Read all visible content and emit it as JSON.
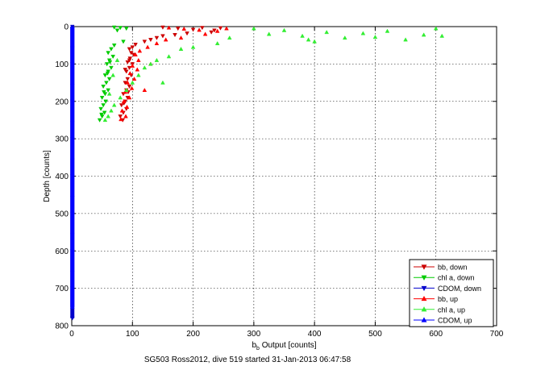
{
  "figure": {
    "footer": "SG503 Ross2012, dive 519 started 31-Jan-2013 06:47:58"
  },
  "chart_data": {
    "type": "scatter",
    "xlabel_main": "b",
    "xlabel_sub": "b",
    "xlabel_rest": " Output [counts]",
    "ylabel": "Depth [counts]",
    "xlim": [
      0,
      700
    ],
    "ylim": [
      0,
      800
    ],
    "y_reversed": true,
    "grid": true,
    "x_ticks": [
      "0",
      "100",
      "200",
      "300",
      "400",
      "500",
      "600",
      "700"
    ],
    "y_ticks": [
      "0",
      "100",
      "200",
      "300",
      "400",
      "500",
      "600",
      "700",
      "800"
    ],
    "legend_position": "bottom-right",
    "series": [
      {
        "name": "bb, down",
        "color": "#cc0000",
        "marker": "triangle-down",
        "points": [
          [
            150,
            2
          ],
          [
            175,
            5
          ],
          [
            200,
            8
          ],
          [
            215,
            3
          ],
          [
            235,
            10
          ],
          [
            245,
            4
          ],
          [
            230,
            15
          ],
          [
            190,
            18
          ],
          [
            170,
            22
          ],
          [
            150,
            25
          ],
          [
            140,
            30
          ],
          [
            130,
            35
          ],
          [
            120,
            40
          ],
          [
            105,
            48
          ],
          [
            100,
            55
          ],
          [
            95,
            60
          ],
          [
            98,
            70
          ],
          [
            102,
            75
          ],
          [
            96,
            85
          ],
          [
            92,
            95
          ],
          [
            100,
            100
          ],
          [
            95,
            110
          ],
          [
            90,
            120
          ],
          [
            98,
            130
          ],
          [
            92,
            140
          ],
          [
            88,
            150
          ],
          [
            95,
            160
          ],
          [
            90,
            170
          ],
          [
            85,
            180
          ],
          [
            92,
            190
          ],
          [
            88,
            200
          ],
          [
            82,
            210
          ],
          [
            90,
            220
          ],
          [
            85,
            230
          ],
          [
            80,
            240
          ],
          [
            84,
            250
          ],
          [
            95,
            90
          ],
          [
            88,
            115
          ],
          [
            93,
            175
          ],
          [
            86,
            205
          ]
        ]
      },
      {
        "name": "chl a, down",
        "color": "#00cc00",
        "marker": "triangle-down",
        "points": [
          [
            70,
            2
          ],
          [
            80,
            3
          ],
          [
            90,
            5
          ],
          [
            75,
            10
          ],
          [
            85,
            40
          ],
          [
            70,
            50
          ],
          [
            65,
            60
          ],
          [
            60,
            70
          ],
          [
            68,
            80
          ],
          [
            62,
            90
          ],
          [
            58,
            100
          ],
          [
            65,
            110
          ],
          [
            60,
            120
          ],
          [
            55,
            130
          ],
          [
            62,
            140
          ],
          [
            57,
            150
          ],
          [
            52,
            160
          ],
          [
            60,
            170
          ],
          [
            55,
            180
          ],
          [
            50,
            190
          ],
          [
            56,
            200
          ],
          [
            52,
            210
          ],
          [
            48,
            220
          ],
          [
            54,
            230
          ],
          [
            50,
            240
          ],
          [
            46,
            250
          ],
          [
            63,
            95
          ],
          [
            59,
            125
          ],
          [
            53,
            175
          ],
          [
            49,
            235
          ]
        ]
      },
      {
        "name": "CDOM, down",
        "color": "#0000cc",
        "marker": "triangle-down",
        "points": [
          [
            1,
            0
          ],
          [
            1,
            100
          ],
          [
            1,
            200
          ],
          [
            1,
            300
          ],
          [
            1,
            400
          ],
          [
            1,
            500
          ],
          [
            1,
            600
          ],
          [
            1,
            700
          ],
          [
            1,
            780
          ]
        ]
      },
      {
        "name": "bb, up",
        "color": "#ff0000",
        "marker": "triangle-up",
        "points": [
          [
            160,
            3
          ],
          [
            185,
            6
          ],
          [
            210,
            9
          ],
          [
            240,
            12
          ],
          [
            255,
            5
          ],
          [
            220,
            20
          ],
          [
            180,
            30
          ],
          [
            155,
            35
          ],
          [
            140,
            45
          ],
          [
            125,
            55
          ],
          [
            112,
            65
          ],
          [
            105,
            75
          ],
          [
            110,
            90
          ],
          [
            100,
            105
          ],
          [
            108,
            115
          ],
          [
            96,
            125
          ],
          [
            103,
            140
          ],
          [
            92,
            150
          ],
          [
            99,
            165
          ],
          [
            88,
            175
          ],
          [
            95,
            190
          ],
          [
            86,
            200
          ],
          [
            91,
            215
          ],
          [
            83,
            225
          ],
          [
            89,
            240
          ],
          [
            81,
            248
          ],
          [
            130,
            100
          ],
          [
            120,
            170
          ]
        ]
      },
      {
        "name": "chl a, up",
        "color": "#33ee33",
        "marker": "triangle-up",
        "points": [
          [
            300,
            5
          ],
          [
            325,
            20
          ],
          [
            350,
            10
          ],
          [
            380,
            25
          ],
          [
            400,
            40
          ],
          [
            420,
            15
          ],
          [
            450,
            30
          ],
          [
            480,
            18
          ],
          [
            500,
            28
          ],
          [
            520,
            12
          ],
          [
            550,
            35
          ],
          [
            580,
            22
          ],
          [
            600,
            5
          ],
          [
            610,
            25
          ],
          [
            390,
            35
          ],
          [
            260,
            30
          ],
          [
            240,
            45
          ],
          [
            200,
            55
          ],
          [
            180,
            60
          ],
          [
            160,
            80
          ],
          [
            140,
            90
          ],
          [
            130,
            100
          ],
          [
            120,
            110
          ],
          [
            110,
            130
          ],
          [
            100,
            150
          ],
          [
            90,
            170
          ],
          [
            80,
            190
          ],
          [
            70,
            210
          ],
          [
            65,
            225
          ],
          [
            60,
            240
          ],
          [
            55,
            250
          ],
          [
            150,
            150
          ],
          [
            75,
            90
          ],
          [
            68,
            130
          ],
          [
            62,
            180
          ]
        ]
      },
      {
        "name": "CDOM, up",
        "color": "#0000ff",
        "marker": "triangle-up",
        "points": [
          [
            1,
            50
          ],
          [
            1,
            150
          ],
          [
            1,
            250
          ],
          [
            1,
            350
          ],
          [
            1,
            450
          ],
          [
            1,
            550
          ],
          [
            1,
            650
          ],
          [
            1,
            750
          ]
        ]
      }
    ]
  }
}
